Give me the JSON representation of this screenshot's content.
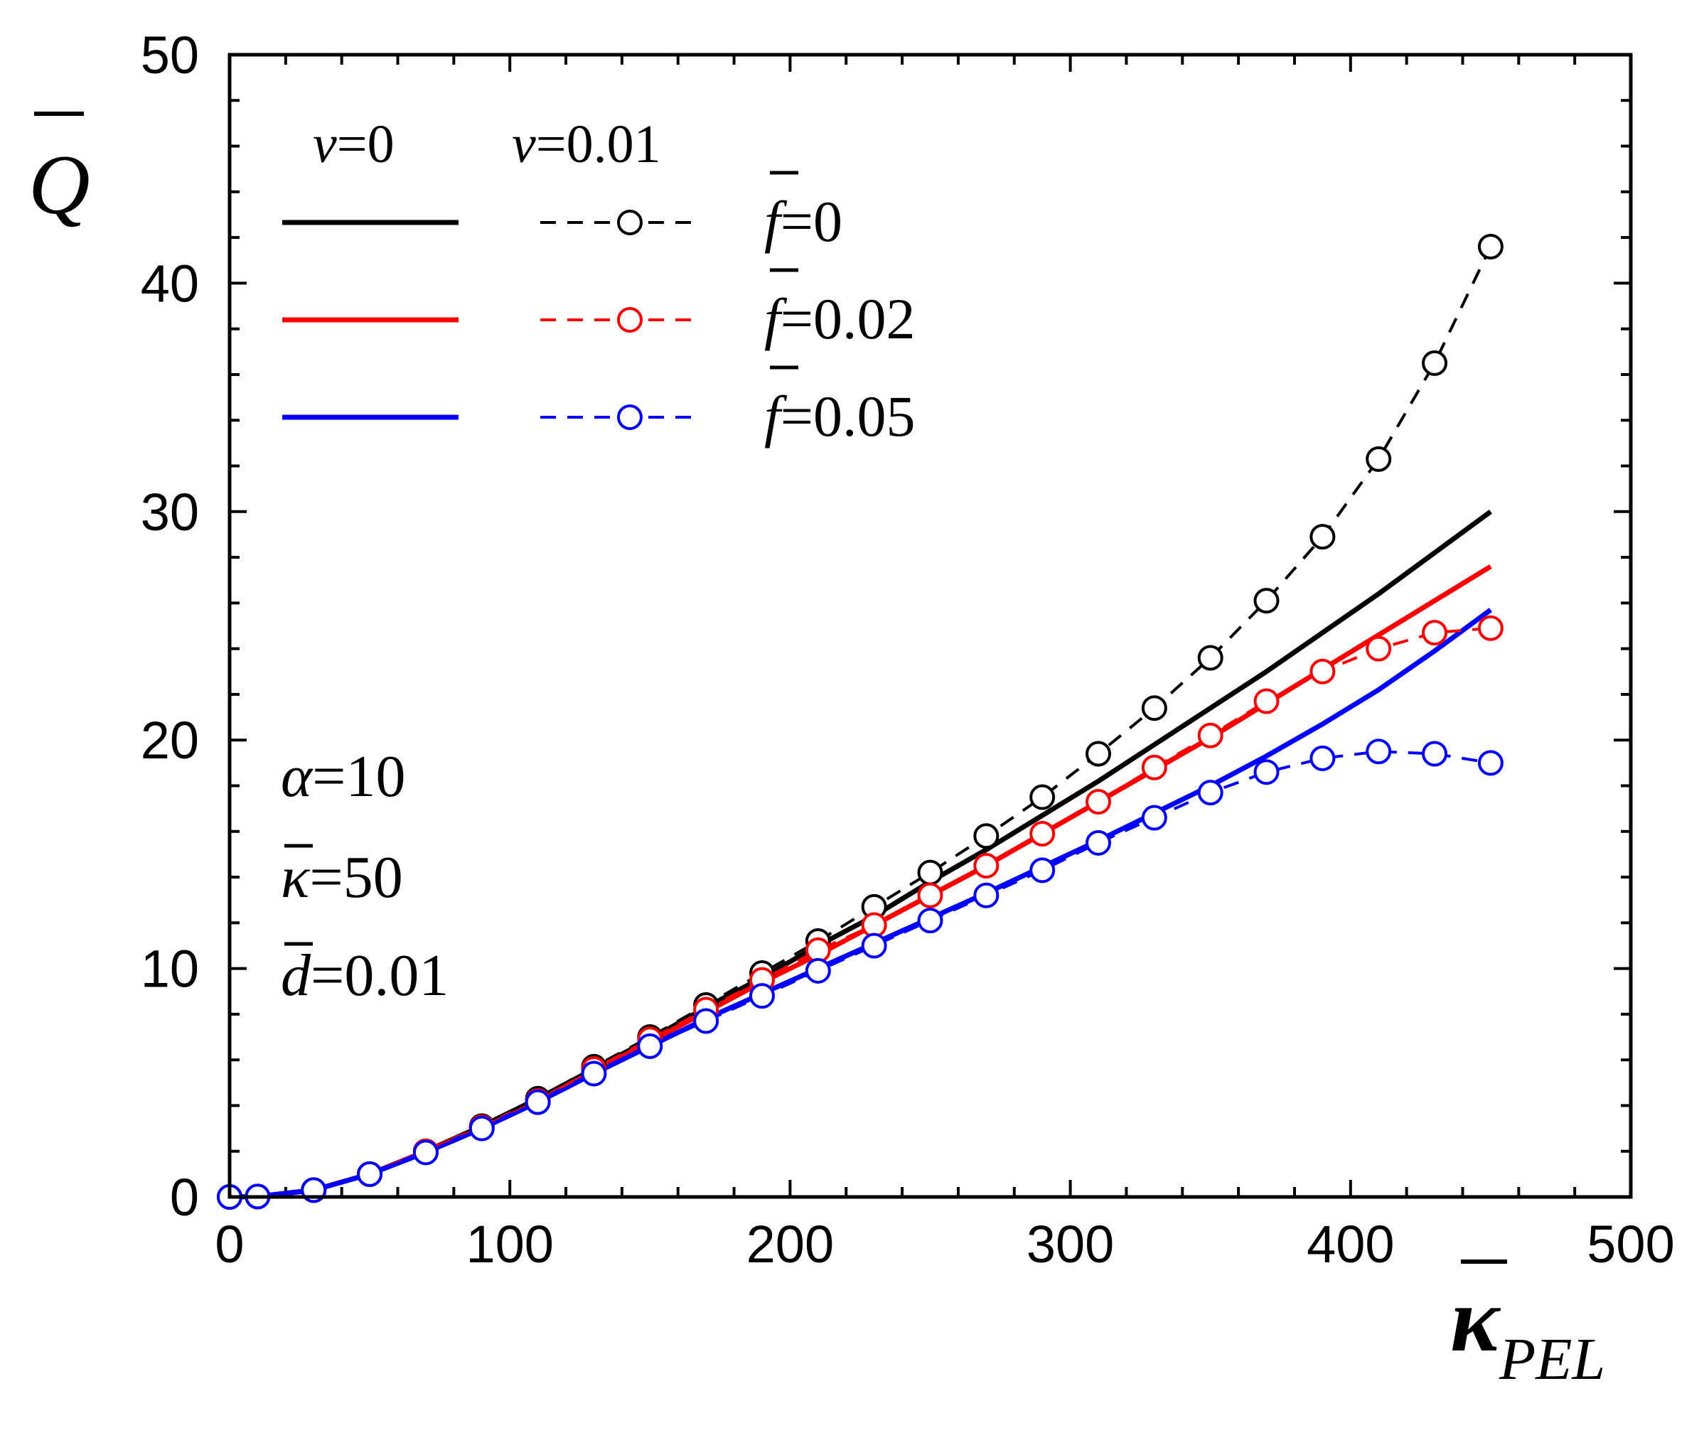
{
  "chart_data": {
    "type": "line",
    "title": "",
    "xlabel": {
      "symbol": "κ",
      "subscript": "PEL"
    },
    "ylabel": {
      "symbol": "Q"
    },
    "xlim": [
      0,
      500
    ],
    "ylim": [
      0,
      50
    ],
    "x_ticks": [
      "0",
      "100",
      "200",
      "300",
      "400",
      "500"
    ],
    "y_ticks": [
      "0",
      "10",
      "20",
      "30",
      "40",
      "50"
    ],
    "grid": false,
    "legend_position": "top-left",
    "legend": {
      "col_headers": [
        {
          "symbol": "ν",
          "text": "=0"
        },
        {
          "symbol": "ν",
          "text": "=0.01"
        }
      ],
      "rows": [
        {
          "symbol": "f",
          "text": "=0",
          "color": "#000000"
        },
        {
          "symbol": "f",
          "text": "=0.02",
          "color": "#ff0000"
        },
        {
          "symbol": "f",
          "text": "=0.05",
          "color": "#0000ff"
        }
      ]
    },
    "annotations": [
      {
        "symbol": "α",
        "text": "=10"
      },
      {
        "symbol": "κ",
        "text": "=50"
      },
      {
        "symbol": "d",
        "text": "=0.01"
      }
    ],
    "series": [
      {
        "name": "ν=0, f=0",
        "color": "#000000",
        "style": "solid",
        "x": [
          0,
          10,
          30,
          50,
          70,
          90,
          110,
          130,
          150,
          170,
          190,
          210,
          230,
          250,
          270,
          290,
          310,
          330,
          350,
          370,
          390,
          410,
          430,
          450
        ],
        "y": [
          0,
          0.02,
          0.3,
          1.0,
          2.0,
          3.1,
          4.3,
          5.6,
          6.9,
          8.3,
          9.6,
          11.0,
          12.3,
          13.8,
          15.2,
          16.7,
          18.2,
          19.8,
          21.4,
          23.0,
          24.7,
          26.4,
          28.2,
          30.0
        ]
      },
      {
        "name": "ν=0, f=0.02",
        "color": "#ff0000",
        "style": "solid",
        "x": [
          0,
          10,
          30,
          50,
          70,
          90,
          110,
          130,
          150,
          170,
          190,
          210,
          230,
          250,
          270,
          290,
          310,
          330,
          350,
          370,
          390,
          410,
          430,
          450
        ],
        "y": [
          0,
          0.02,
          0.3,
          1.0,
          2.0,
          3.05,
          4.2,
          5.5,
          6.8,
          8.1,
          9.4,
          10.6,
          11.9,
          13.2,
          14.5,
          15.9,
          17.3,
          18.7,
          20.1,
          21.6,
          23.1,
          24.6,
          26.1,
          27.6
        ]
      },
      {
        "name": "ν=0, f=0.05",
        "color": "#0000ff",
        "style": "solid",
        "x": [
          0,
          10,
          30,
          50,
          70,
          90,
          110,
          130,
          150,
          170,
          190,
          210,
          230,
          250,
          270,
          290,
          310,
          330,
          350,
          370,
          390,
          410,
          430,
          450
        ],
        "y": [
          0,
          0.02,
          0.3,
          1.0,
          1.95,
          3.0,
          4.15,
          5.4,
          6.6,
          7.8,
          8.9,
          10.0,
          11.1,
          12.2,
          13.3,
          14.45,
          15.6,
          16.8,
          18.0,
          19.3,
          20.7,
          22.2,
          23.9,
          25.7
        ]
      },
      {
        "name": "ν=0.01, f=0",
        "color": "#000000",
        "style": "dashed",
        "marker": "circle",
        "x": [
          0,
          10,
          30,
          50,
          70,
          90,
          110,
          130,
          150,
          170,
          190,
          210,
          230,
          250,
          270,
          290,
          310,
          330,
          350,
          370,
          390,
          410,
          430,
          450
        ],
        "y": [
          0,
          0.02,
          0.3,
          1.0,
          2.0,
          3.1,
          4.3,
          5.7,
          7.0,
          8.4,
          9.8,
          11.2,
          12.7,
          14.2,
          15.8,
          17.5,
          19.4,
          21.4,
          23.6,
          26.1,
          28.9,
          32.3,
          36.5,
          41.6
        ]
      },
      {
        "name": "ν=0.01, f=0.02",
        "color": "#ff0000",
        "style": "dashed",
        "marker": "circle",
        "x": [
          0,
          10,
          30,
          50,
          70,
          90,
          110,
          130,
          150,
          170,
          190,
          210,
          230,
          250,
          270,
          290,
          310,
          330,
          350,
          370,
          390,
          410,
          430,
          450
        ],
        "y": [
          0,
          0.02,
          0.3,
          1.0,
          2.0,
          3.05,
          4.2,
          5.6,
          6.9,
          8.2,
          9.5,
          10.8,
          11.9,
          13.2,
          14.5,
          15.9,
          17.3,
          18.8,
          20.2,
          21.7,
          23.0,
          24.0,
          24.7,
          24.9
        ]
      },
      {
        "name": "ν=0.01, f=0.05",
        "color": "#0000ff",
        "style": "dashed",
        "marker": "circle",
        "x": [
          0,
          10,
          30,
          50,
          70,
          90,
          110,
          130,
          150,
          170,
          190,
          210,
          230,
          250,
          270,
          290,
          310,
          330,
          350,
          370,
          390,
          410,
          430,
          450
        ],
        "y": [
          0,
          0.02,
          0.3,
          1.0,
          1.95,
          3.0,
          4.15,
          5.4,
          6.6,
          7.7,
          8.8,
          9.9,
          11.0,
          12.1,
          13.2,
          14.3,
          15.5,
          16.6,
          17.7,
          18.6,
          19.2,
          19.5,
          19.4,
          19.0
        ]
      }
    ]
  }
}
